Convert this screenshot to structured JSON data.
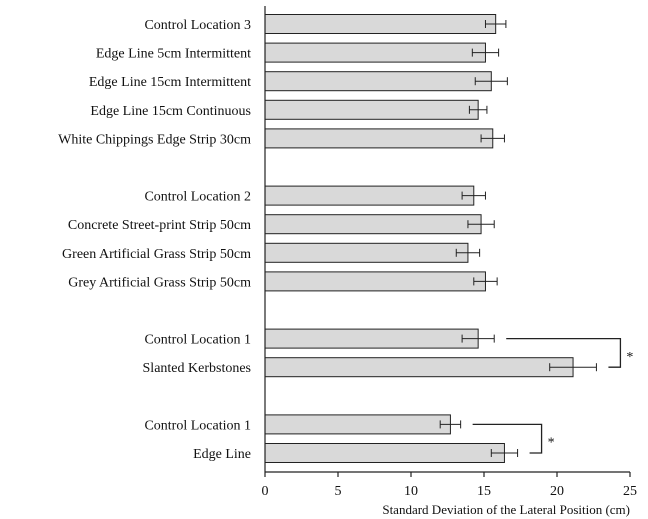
{
  "chart_data": {
    "type": "bar",
    "orientation": "horizontal",
    "title": "",
    "xlabel": "Standard Deviation of the Lateral Position (cm)",
    "ylabel": "",
    "xlim": [
      0,
      25
    ],
    "xticks": [
      0,
      5,
      10,
      15,
      20,
      25
    ],
    "grid": false,
    "categories": [
      "Control Location 3",
      "Edge Line 5cm Intermittent",
      "Edge Line 15cm Intermittent",
      "Edge Line 15cm Continuous",
      "White Chippings Edge Strip 30cm",
      "Control Location 2",
      "Concrete Street-print Strip 50cm",
      "Green Artificial Grass Strip 50cm",
      "Grey Artificial Grass Strip 50cm",
      "Control Location 1",
      "Slanted Kerbstones",
      "Control Location 1",
      "Edge Line"
    ],
    "groups": [
      [
        0,
        1,
        2,
        3,
        4
      ],
      [
        5,
        6,
        7,
        8
      ],
      [
        9,
        10
      ],
      [
        11,
        12
      ]
    ],
    "values": [
      15.8,
      15.1,
      15.5,
      14.6,
      15.6,
      14.3,
      14.8,
      13.9,
      15.1,
      14.6,
      21.1,
      12.7,
      16.4
    ],
    "errors": [
      0.7,
      0.9,
      1.1,
      0.6,
      0.8,
      0.8,
      0.9,
      0.8,
      0.8,
      1.1,
      1.6,
      0.7,
      0.9
    ],
    "significance": [
      {
        "rows": [
          9,
          10
        ],
        "label": "*"
      },
      {
        "rows": [
          11,
          12
        ],
        "label": "*"
      }
    ],
    "colors": {
      "bar_fill": "#d9d9d9",
      "bar_stroke": "#222222"
    }
  }
}
